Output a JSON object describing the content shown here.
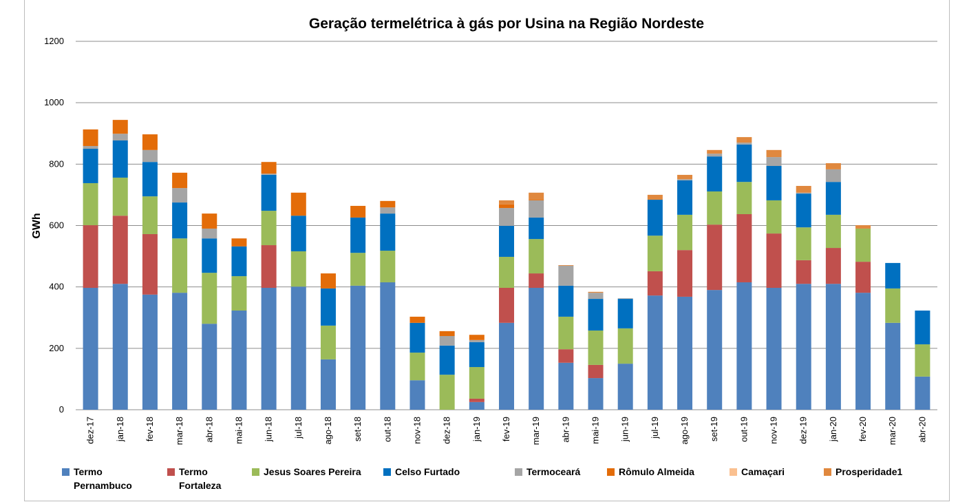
{
  "chart_data": {
    "type": "stacked_bar",
    "title": "Geração termelétrica à gás por Usina na Região Nordeste",
    "y_label": "GWh",
    "categories": [
      "dez-17",
      "jan-18",
      "fev-18",
      "mar-18",
      "abr-18",
      "mai-18",
      "jun-18",
      "jul-18",
      "ago-18",
      "set-18",
      "out-18",
      "nov-18",
      "dez-18",
      "jan-19",
      "fev-19",
      "mar-19",
      "abr-19",
      "mai-19",
      "jun-19",
      "jul-19",
      "ago-19",
      "set-19",
      "out-19",
      "nov-19",
      "dez-19",
      "jan-20",
      "fev-20",
      "mar-20",
      "abr-20"
    ],
    "series": [
      {
        "name": "Termo Pernambuco",
        "color": "#4f81bd",
        "values": [
          397,
          410,
          375,
          381,
          280,
          323,
          397,
          401,
          164,
          404,
          415,
          96,
          0,
          25,
          283,
          397,
          153,
          103,
          150,
          372,
          368,
          390,
          415,
          397,
          410,
          410,
          381,
          283,
          108
        ]
      },
      {
        "name": "Termo Fortaleza",
        "color": "#c0504d",
        "values": [
          204,
          222,
          197,
          0,
          0,
          0,
          139,
          0,
          0,
          0,
          0,
          0,
          0,
          11,
          114,
          47,
          44,
          43,
          0,
          79,
          152,
          213,
          222,
          177,
          77,
          117,
          101,
          0,
          0
        ]
      },
      {
        "name": "Jesus Soares Pereira",
        "color": "#9bbb59",
        "values": [
          137,
          124,
          123,
          177,
          166,
          112,
          112,
          115,
          110,
          107,
          103,
          90,
          114,
          103,
          101,
          112,
          106,
          112,
          115,
          116,
          115,
          108,
          105,
          108,
          107,
          108,
          108,
          112,
          105
        ]
      },
      {
        "name": "Celso Furtado",
        "color": "#0070c0",
        "values": [
          112,
          121,
          112,
          117,
          112,
          97,
          117,
          116,
          121,
          115,
          121,
          97,
          95,
          81,
          101,
          70,
          101,
          103,
          96,
          117,
          112,
          114,
          122,
          112,
          110,
          107,
          0,
          83,
          110
        ]
      },
      {
        "name": "Termoceará",
        "color": "#a5a5a5",
        "values": [
          9,
          22,
          39,
          47,
          32,
          0,
          4,
          0,
          0,
          0,
          20,
          0,
          31,
          7,
          58,
          56,
          65,
          20,
          2,
          0,
          4,
          9,
          6,
          29,
          3,
          41,
          0,
          0,
          0
        ]
      },
      {
        "name": "Rômulo Almeida",
        "color": "#e36c09",
        "values": [
          54,
          45,
          51,
          50,
          49,
          26,
          38,
          75,
          49,
          38,
          21,
          20,
          16,
          17,
          12,
          2,
          0,
          0,
          0,
          0,
          0,
          0,
          0,
          0,
          0,
          0,
          0,
          0,
          0
        ]
      },
      {
        "name": "Camaçari",
        "color": "#fac090",
        "values": [
          0,
          0,
          0,
          0,
          0,
          0,
          0,
          0,
          0,
          0,
          0,
          0,
          0,
          0,
          0,
          0,
          0,
          0,
          0,
          0,
          0,
          0,
          0,
          0,
          0,
          0,
          0,
          0,
          0
        ]
      },
      {
        "name": "Prosperidade1",
        "color": "#e0883e",
        "values": [
          0,
          0,
          0,
          0,
          0,
          0,
          0,
          0,
          0,
          0,
          0,
          0,
          0,
          0,
          13,
          23,
          2,
          3,
          0,
          16,
          14,
          12,
          18,
          23,
          22,
          20,
          11,
          0,
          0
        ]
      }
    ],
    "ylim": [
      0,
      1200
    ],
    "yticks": [
      0,
      200,
      400,
      600,
      800,
      1000,
      1200
    ],
    "grid": true
  }
}
